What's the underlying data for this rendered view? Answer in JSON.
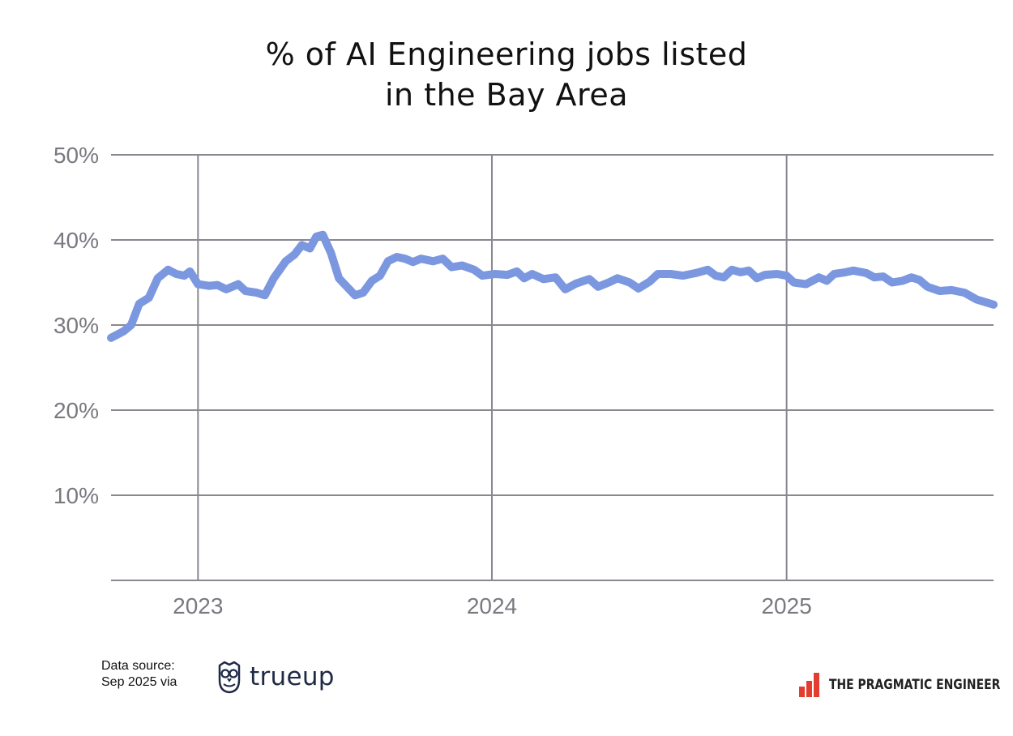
{
  "title": {
    "line1": "% of AI Engineering jobs listed",
    "line2": "in the Bay Area"
  },
  "chart_data": {
    "type": "line",
    "title": "% of AI Engineering jobs listed in the Bay Area",
    "xlabel": "",
    "ylabel": "",
    "y_ticks": [
      10,
      20,
      30,
      40,
      50
    ],
    "y_tick_labels": [
      "10%",
      "20%",
      "30%",
      "40%",
      "50%"
    ],
    "ylim": [
      0,
      50
    ],
    "x_ticks": [
      "2023",
      "2024",
      "2025"
    ],
    "xlim": [
      "2022-09-15",
      "2025-09-15"
    ],
    "grid": true,
    "line_color": "#7b97e0",
    "series": [
      {
        "points": [
          [
            "2022-09-15",
            28.5
          ],
          [
            "2022-10-01",
            29.3
          ],
          [
            "2022-10-10",
            30.0
          ],
          [
            "2022-10-20",
            32.5
          ],
          [
            "2022-11-01",
            33.2
          ],
          [
            "2022-11-12",
            35.5
          ],
          [
            "2022-11-25",
            36.5
          ],
          [
            "2022-12-05",
            36.0
          ],
          [
            "2022-12-15",
            35.8
          ],
          [
            "2022-12-22",
            36.3
          ],
          [
            "2023-01-01",
            34.8
          ],
          [
            "2023-01-15",
            34.6
          ],
          [
            "2023-01-25",
            34.7
          ],
          [
            "2023-02-05",
            34.2
          ],
          [
            "2023-02-20",
            34.8
          ],
          [
            "2023-03-01",
            34.0
          ],
          [
            "2023-03-15",
            33.8
          ],
          [
            "2023-03-25",
            33.5
          ],
          [
            "2023-04-05",
            35.5
          ],
          [
            "2023-04-20",
            37.5
          ],
          [
            "2023-05-01",
            38.3
          ],
          [
            "2023-05-10",
            39.4
          ],
          [
            "2023-05-20",
            39.0
          ],
          [
            "2023-05-28",
            40.4
          ],
          [
            "2023-06-05",
            40.6
          ],
          [
            "2023-06-15",
            38.5
          ],
          [
            "2023-06-25",
            35.5
          ],
          [
            "2023-07-05",
            34.5
          ],
          [
            "2023-07-15",
            33.5
          ],
          [
            "2023-07-25",
            33.8
          ],
          [
            "2023-08-05",
            35.2
          ],
          [
            "2023-08-15",
            35.8
          ],
          [
            "2023-08-25",
            37.5
          ],
          [
            "2023-09-05",
            38.0
          ],
          [
            "2023-09-15",
            37.8
          ],
          [
            "2023-09-25",
            37.4
          ],
          [
            "2023-10-05",
            37.8
          ],
          [
            "2023-10-20",
            37.5
          ],
          [
            "2023-11-01",
            37.8
          ],
          [
            "2023-11-12",
            36.8
          ],
          [
            "2023-11-25",
            37.0
          ],
          [
            "2023-12-10",
            36.5
          ],
          [
            "2023-12-20",
            35.8
          ],
          [
            "2024-01-05",
            36.0
          ],
          [
            "2024-01-20",
            35.9
          ],
          [
            "2024-02-01",
            36.3
          ],
          [
            "2024-02-10",
            35.5
          ],
          [
            "2024-02-20",
            36.0
          ],
          [
            "2024-03-05",
            35.4
          ],
          [
            "2024-03-20",
            35.6
          ],
          [
            "2024-04-01",
            34.2
          ],
          [
            "2024-04-15",
            34.9
          ],
          [
            "2024-05-01",
            35.4
          ],
          [
            "2024-05-12",
            34.5
          ],
          [
            "2024-05-25",
            35.0
          ],
          [
            "2024-06-05",
            35.5
          ],
          [
            "2024-06-20",
            35.0
          ],
          [
            "2024-07-01",
            34.3
          ],
          [
            "2024-07-15",
            35.1
          ],
          [
            "2024-07-25",
            36.0
          ],
          [
            "2024-08-10",
            36.0
          ],
          [
            "2024-08-25",
            35.8
          ],
          [
            "2024-09-10",
            36.1
          ],
          [
            "2024-09-25",
            36.5
          ],
          [
            "2024-10-05",
            35.8
          ],
          [
            "2024-10-15",
            35.6
          ],
          [
            "2024-10-25",
            36.5
          ],
          [
            "2024-11-05",
            36.2
          ],
          [
            "2024-11-15",
            36.4
          ],
          [
            "2024-11-25",
            35.5
          ],
          [
            "2024-12-05",
            35.9
          ],
          [
            "2024-12-20",
            36.0
          ],
          [
            "2025-01-01",
            35.8
          ],
          [
            "2025-01-10",
            35.0
          ],
          [
            "2025-01-25",
            34.8
          ],
          [
            "2025-02-10",
            35.6
          ],
          [
            "2025-02-20",
            35.2
          ],
          [
            "2025-03-01",
            36.0
          ],
          [
            "2025-03-15",
            36.2
          ],
          [
            "2025-03-25",
            36.4
          ],
          [
            "2025-04-10",
            36.1
          ],
          [
            "2025-04-20",
            35.6
          ],
          [
            "2025-05-01",
            35.7
          ],
          [
            "2025-05-12",
            35.0
          ],
          [
            "2025-05-25",
            35.2
          ],
          [
            "2025-06-05",
            35.6
          ],
          [
            "2025-06-15",
            35.3
          ],
          [
            "2025-06-25",
            34.5
          ],
          [
            "2025-07-10",
            34.0
          ],
          [
            "2025-07-25",
            34.1
          ],
          [
            "2025-08-10",
            33.8
          ],
          [
            "2025-08-25",
            33.0
          ],
          [
            "2025-09-15",
            32.4
          ]
        ]
      }
    ]
  },
  "footer": {
    "source_line1": "Data source:",
    "source_line2": "Sep 2025 via",
    "source_brand": "trueup",
    "publisher": "THE PRAGMATIC ENGINEER"
  }
}
